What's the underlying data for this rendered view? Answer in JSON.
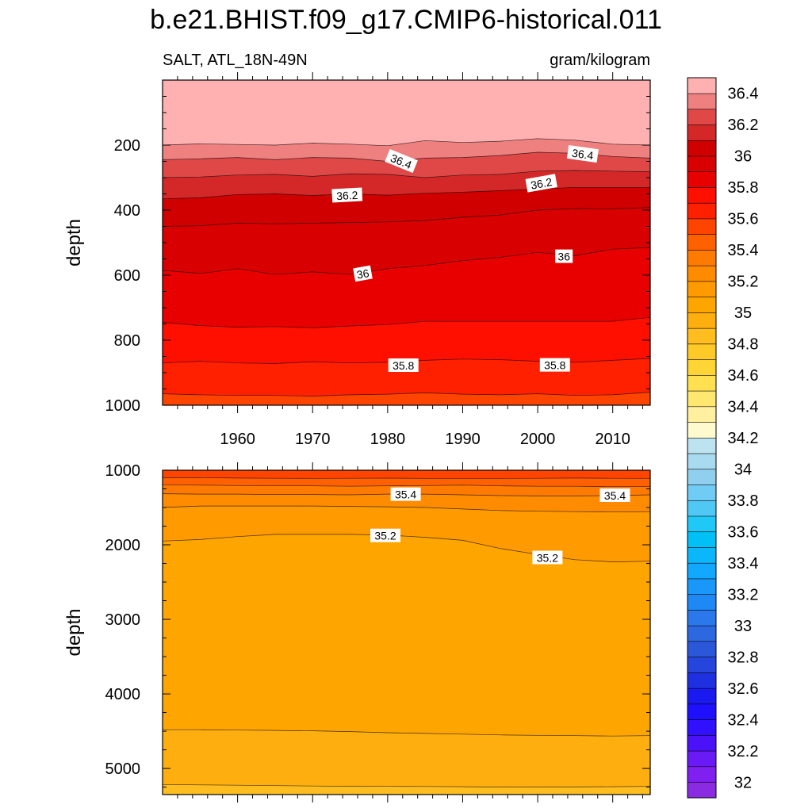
{
  "figure": {
    "title": "b.e21.BHIST.f09_g17.CMIP6-historical.011",
    "left_subtitle": "SALT, ATL_18N-49N",
    "right_subtitle": "gram/kilogram"
  },
  "chart_data": [
    {
      "type": "contour",
      "panel": "upper",
      "ylabel": "depth",
      "xlabel": "",
      "xlim": [
        1950,
        2015
      ],
      "ylim": [
        1000,
        0
      ],
      "xticks": [
        1960,
        1970,
        1980,
        1990,
        2000,
        2010
      ],
      "xtick_labels": [
        "1960",
        "1970",
        "1980",
        "1990",
        "2000",
        "2010"
      ],
      "yticks": [
        200,
        400,
        600,
        800,
        1000
      ],
      "ytick_labels": [
        "200",
        "400",
        "600",
        "800",
        "1000"
      ],
      "x": [
        1950,
        1955,
        1960,
        1965,
        1970,
        1975,
        1980,
        1985,
        1990,
        1995,
        2000,
        2005,
        2010,
        2015
      ],
      "isolines": [
        {
          "level": 36.5,
          "depths": [
            200,
            196,
            198,
            200,
            194,
            197,
            202,
            186,
            192,
            188,
            180,
            185,
            197,
            200
          ]
        },
        {
          "level": 36.4,
          "depths": [
            245,
            242,
            238,
            245,
            238,
            240,
            250,
            240,
            238,
            232,
            222,
            225,
            235,
            240
          ]
        },
        {
          "level": 36.3,
          "depths": [
            300,
            298,
            292,
            290,
            296,
            288,
            290,
            300,
            292,
            290,
            280,
            278,
            280,
            282
          ]
        },
        {
          "level": 36.2,
          "depths": [
            365,
            362,
            352,
            350,
            355,
            350,
            354,
            348,
            345,
            340,
            335,
            330,
            330,
            330
          ]
        },
        {
          "level": 36.1,
          "depths": [
            450,
            448,
            440,
            442,
            440,
            438,
            436,
            432,
            422,
            415,
            400,
            395,
            396,
            392
          ]
        },
        {
          "level": 36.0,
          "depths": [
            585,
            595,
            580,
            598,
            590,
            598,
            580,
            570,
            555,
            545,
            530,
            540,
            520,
            515
          ]
        },
        {
          "level": 35.9,
          "depths": [
            745,
            755,
            760,
            758,
            762,
            756,
            752,
            742,
            742,
            742,
            742,
            742,
            742,
            730
          ]
        },
        {
          "level": 35.8,
          "depths": [
            870,
            865,
            870,
            872,
            866,
            870,
            868,
            862,
            858,
            860,
            865,
            868,
            862,
            856
          ]
        },
        {
          "level": 35.7,
          "depths": [
            965,
            968,
            970,
            970,
            972,
            968,
            966,
            962,
            966,
            968,
            965,
            970,
            968,
            960
          ]
        }
      ],
      "contour_labels": [
        {
          "text": "36.4",
          "x": 1981.8,
          "depth": 250,
          "angle": 22
        },
        {
          "text": "36.4",
          "x": 2006.0,
          "depth": 228,
          "angle": 8
        },
        {
          "text": "36.2",
          "x": 1974.6,
          "depth": 355,
          "angle": -3
        },
        {
          "text": "36.2",
          "x": 2000.5,
          "depth": 318,
          "angle": -10
        },
        {
          "text": "36",
          "x": 1976.7,
          "depth": 596,
          "angle": -10
        },
        {
          "text": "36",
          "x": 2003.5,
          "depth": 543,
          "angle": 0
        },
        {
          "text": "35.8",
          "x": 1982.1,
          "depth": 878,
          "angle": 0
        },
        {
          "text": "35.8",
          "x": 2002.3,
          "depth": 877,
          "angle": 0
        }
      ]
    },
    {
      "type": "contour",
      "panel": "lower",
      "ylabel": "depth",
      "xlabel": "",
      "xlim": [
        1950,
        2015
      ],
      "ylim": [
        5350,
        1000
      ],
      "yticks": [
        1000,
        2000,
        3000,
        4000,
        5000
      ],
      "ytick_labels": [
        "1000",
        "2000",
        "3000",
        "4000",
        "5000"
      ],
      "x": [
        1950,
        1955,
        1960,
        1965,
        1970,
        1975,
        1980,
        1985,
        1990,
        1995,
        2000,
        2005,
        2010,
        2015
      ],
      "isolines": [
        {
          "level": 35.6,
          "depths": [
            1100,
            1100,
            1105,
            1108,
            1110,
            1108,
            1106,
            1110,
            1110,
            1110,
            1108,
            1105,
            1108,
            1110
          ]
        },
        {
          "level": 35.5,
          "depths": [
            1195,
            1200,
            1205,
            1210,
            1210,
            1215,
            1210,
            1205,
            1200,
            1210,
            1215,
            1215,
            1220,
            1220
          ]
        },
        {
          "level": 35.4,
          "depths": [
            1315,
            1320,
            1320,
            1325,
            1325,
            1330,
            1320,
            1320,
            1330,
            1340,
            1345,
            1345,
            1340,
            1330
          ]
        },
        {
          "level": 35.3,
          "depths": [
            1500,
            1480,
            1480,
            1480,
            1480,
            1485,
            1490,
            1500,
            1520,
            1540,
            1550,
            1555,
            1560,
            1555
          ]
        },
        {
          "level": 35.2,
          "depths": [
            1950,
            1930,
            1890,
            1860,
            1860,
            1860,
            1870,
            1900,
            1940,
            2050,
            2130,
            2200,
            2230,
            2220
          ]
        },
        {
          "level": 35.1,
          "depths": [
            4480,
            4480,
            4485,
            4490,
            4495,
            4505,
            4520,
            4530,
            4540,
            4550,
            4555,
            4560,
            4565,
            4560
          ]
        },
        {
          "level": 35.0,
          "depths": [
            5215,
            5220,
            5225,
            5230,
            5235,
            5238,
            5240,
            5242,
            5245,
            5250,
            5250,
            5248,
            5245,
            5240
          ]
        }
      ],
      "contour_labels": [
        {
          "text": "35.4",
          "x": 1982.4,
          "depth": 1325,
          "angle": 0
        },
        {
          "text": "35.4",
          "x": 2010.3,
          "depth": 1340,
          "angle": 0
        },
        {
          "text": "35.2",
          "x": 1979.7,
          "depth": 1880,
          "angle": 0
        },
        {
          "text": "35.2",
          "x": 2001.3,
          "depth": 2175,
          "angle": 0
        }
      ]
    }
  ],
  "colorbar": {
    "levels": [
      32.0,
      32.1,
      32.2,
      32.3,
      32.4,
      32.5,
      32.6,
      32.7,
      32.8,
      32.9,
      33.0,
      33.1,
      33.2,
      33.3,
      33.4,
      33.5,
      33.6,
      33.7,
      33.8,
      33.9,
      34.0,
      34.1,
      34.2,
      34.3,
      34.4,
      34.5,
      34.6,
      34.7,
      34.8,
      34.9,
      35.0,
      35.1,
      35.2,
      35.3,
      35.4,
      35.5,
      35.6,
      35.7,
      35.8,
      35.9,
      36.0,
      36.1,
      36.2,
      36.3,
      36.4,
      36.5
    ],
    "labels": [
      "32",
      "32.2",
      "32.4",
      "32.6",
      "32.8",
      "33",
      "33.2",
      "33.4",
      "33.6",
      "33.8",
      "34",
      "34.2",
      "34.4",
      "34.6",
      "34.8",
      "35",
      "35.2",
      "35.4",
      "35.6",
      "35.8",
      "36",
      "36.2",
      "36.4"
    ],
    "colors": [
      "#8A2BE2",
      "#7F1FF0",
      "#6A1AF5",
      "#4B12FA",
      "#3010FF",
      "#1E10FF",
      "#1A1AF0",
      "#1F30E0",
      "#2545DC",
      "#2A58D8",
      "#2E68E0",
      "#2A78EC",
      "#1E88F5",
      "#1A98FA",
      "#12A8FF",
      "#0BB6FA",
      "#00C0F5",
      "#20C8F8",
      "#50C8F5",
      "#70CCF5",
      "#90D0EE",
      "#A8DAF0",
      "#BEE3F0",
      "#FFFACD",
      "#FFF0A0",
      "#FFE770",
      "#FFE050",
      "#FFD535",
      "#FFCA28",
      "#FFBD20",
      "#FFAE10",
      "#FFA500",
      "#FF9A00",
      "#FF8C00",
      "#FF7A00",
      "#FF6000",
      "#FF4400",
      "#FF2000",
      "#FF0F00",
      "#E80000",
      "#D80000",
      "#D00000",
      "#D42828",
      "#E04848",
      "#EE8080",
      "#FFB0B0"
    ]
  }
}
